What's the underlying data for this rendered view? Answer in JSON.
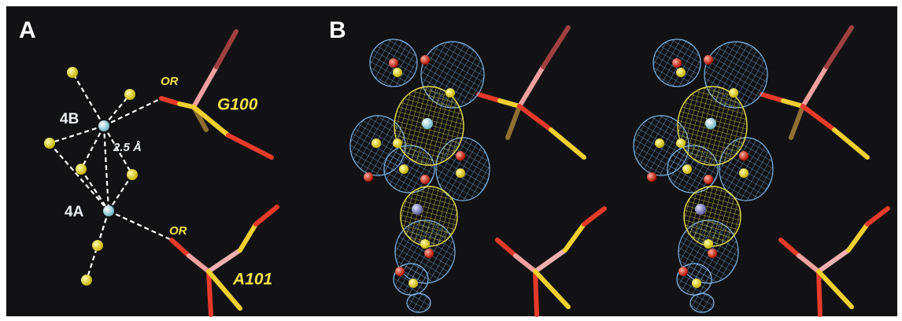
{
  "panels": [
    {
      "label": "A",
      "annotations": [
        "OR",
        "G100",
        "4B",
        "2.5 Å",
        "4A",
        "OR",
        "A101"
      ]
    },
    {
      "label": "B"
    }
  ]
}
